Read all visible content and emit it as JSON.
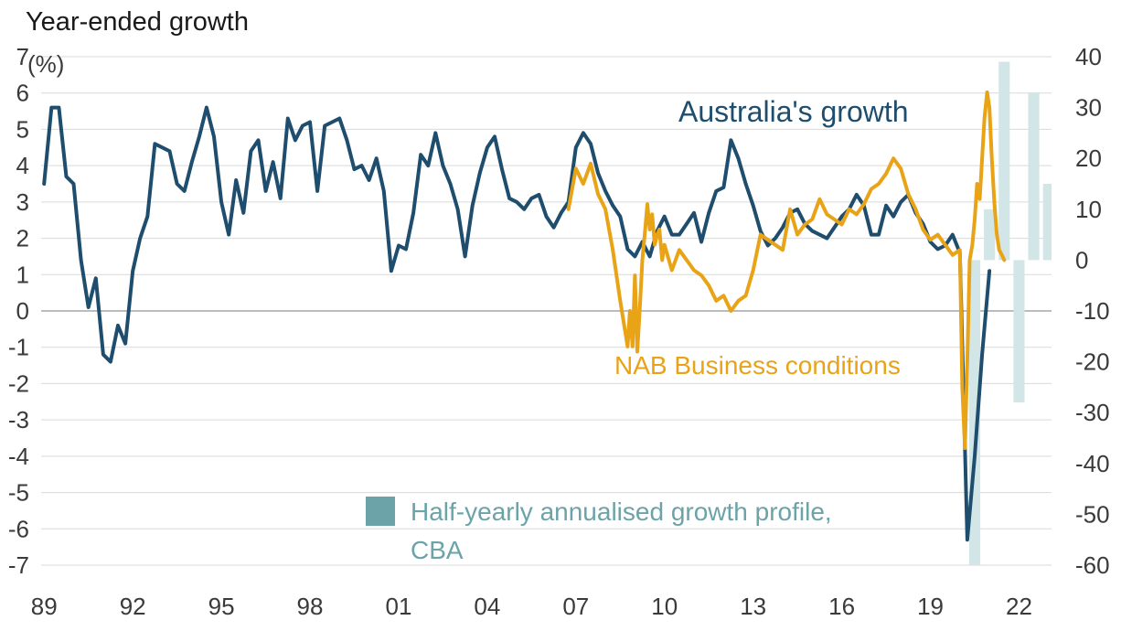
{
  "chart_data": {
    "type": "line",
    "title": "Year-ended growth",
    "left_unit": "(%)",
    "x_tick_labels": [
      "89",
      "92",
      "95",
      "98",
      "01",
      "04",
      "07",
      "10",
      "13",
      "16",
      "19",
      "22"
    ],
    "x_ticks": [
      1989,
      1992,
      1995,
      1998,
      2001,
      2004,
      2007,
      2010,
      2013,
      2016,
      2019,
      2022
    ],
    "xlim": [
      1988.9,
      2023.1
    ],
    "ylim_left": [
      -7,
      7
    ],
    "y_ticks_left": [
      7,
      6,
      5,
      4,
      3,
      2,
      1,
      0,
      -1,
      -2,
      -3,
      -4,
      -5,
      -6,
      -7
    ],
    "y_tick_labels_left": [
      "7",
      "6",
      "5",
      "4",
      "3",
      "2",
      "1",
      "0",
      "-1",
      "-2",
      "-3",
      "-4",
      "-5",
      "-6",
      "-7"
    ],
    "ylim_right": [
      -60,
      40
    ],
    "y_ticks_right": [
      40,
      30,
      20,
      10,
      0,
      -10,
      -20,
      -30,
      -40,
      -50,
      -60
    ],
    "y_tick_labels_right": [
      "40",
      "30",
      "20",
      "10",
      "0",
      "-10",
      "-20",
      "-30",
      "-40",
      "-50",
      "-60"
    ],
    "gridlines": true,
    "annotations": {
      "australia": "Australia's growth",
      "nab": "NAB Business conditions",
      "legend_line1": "Half-yearly annualised growth profile,",
      "legend_line2": "CBA"
    },
    "colors": {
      "australia": "#1e4d6e",
      "nab": "#e8a317",
      "bars": "#d2e6e7",
      "legend_swatch": "#6ba3a8",
      "grid": "#d9d9d9",
      "zero": "#a6a6a6"
    },
    "series": [
      {
        "name": "Australia's growth",
        "axis": "left",
        "x": [
          1989.0,
          1989.25,
          1989.5,
          1989.75,
          1990.0,
          1990.25,
          1990.5,
          1990.75,
          1991.0,
          1991.25,
          1991.5,
          1991.75,
          1992.0,
          1992.25,
          1992.5,
          1992.75,
          1993.0,
          1993.25,
          1993.5,
          1993.75,
          1994.0,
          1994.25,
          1994.5,
          1994.75,
          1995.0,
          1995.25,
          1995.5,
          1995.75,
          1996.0,
          1996.25,
          1996.5,
          1996.75,
          1997.0,
          1997.25,
          1997.5,
          1997.75,
          1998.0,
          1998.25,
          1998.5,
          1998.75,
          1999.0,
          1999.25,
          1999.5,
          1999.75,
          2000.0,
          2000.25,
          2000.5,
          2000.75,
          2001.0,
          2001.25,
          2001.5,
          2001.75,
          2002.0,
          2002.25,
          2002.5,
          2002.75,
          2003.0,
          2003.25,
          2003.5,
          2003.75,
          2004.0,
          2004.25,
          2004.5,
          2004.75,
          2005.0,
          2005.25,
          2005.5,
          2005.75,
          2006.0,
          2006.25,
          2006.5,
          2006.75,
          2007.0,
          2007.25,
          2007.5,
          2007.75,
          2008.0,
          2008.25,
          2008.5,
          2008.75,
          2009.0,
          2009.25,
          2009.5,
          2009.75,
          2010.0,
          2010.25,
          2010.5,
          2010.75,
          2011.0,
          2011.25,
          2011.5,
          2011.75,
          2012.0,
          2012.25,
          2012.5,
          2012.75,
          2013.0,
          2013.25,
          2013.5,
          2013.75,
          2014.0,
          2014.25,
          2014.5,
          2014.75,
          2015.0,
          2015.25,
          2015.5,
          2015.75,
          2016.0,
          2016.25,
          2016.5,
          2016.75,
          2017.0,
          2017.25,
          2017.5,
          2017.75,
          2018.0,
          2018.25,
          2018.5,
          2018.75,
          2019.0,
          2019.25,
          2019.5,
          2019.75,
          2020.0,
          2020.25,
          2020.5,
          2020.75,
          2021.0
        ],
        "values": [
          3.5,
          5.6,
          5.6,
          3.7,
          3.5,
          1.4,
          0.1,
          0.9,
          -1.2,
          -1.4,
          -0.4,
          -0.9,
          1.1,
          2.0,
          2.6,
          4.6,
          4.5,
          4.4,
          3.5,
          3.3,
          4.1,
          4.8,
          5.6,
          4.8,
          3.0,
          2.1,
          3.6,
          2.7,
          4.4,
          4.7,
          3.3,
          4.1,
          3.1,
          5.3,
          4.7,
          5.1,
          5.2,
          3.3,
          5.1,
          5.2,
          5.3,
          4.7,
          3.9,
          4.0,
          3.6,
          4.2,
          3.3,
          1.1,
          1.8,
          1.7,
          2.7,
          4.3,
          4.0,
          4.9,
          4.0,
          3.5,
          2.8,
          1.5,
          2.9,
          3.8,
          4.5,
          4.8,
          3.9,
          3.1,
          3.0,
          2.8,
          3.1,
          3.2,
          2.6,
          2.3,
          2.7,
          3.0,
          4.5,
          4.9,
          4.6,
          3.8,
          3.3,
          2.9,
          2.6,
          1.7,
          1.5,
          1.9,
          1.5,
          2.2,
          2.6,
          2.1,
          2.1,
          2.4,
          2.7,
          1.9,
          2.7,
          3.3,
          3.4,
          4.7,
          4.2,
          3.5,
          2.9,
          2.2,
          1.8,
          2.0,
          2.3,
          2.7,
          2.8,
          2.4,
          2.2,
          2.1,
          2.0,
          2.3,
          2.6,
          2.8,
          3.2,
          2.9,
          2.1,
          2.1,
          2.9,
          2.6,
          3.0,
          3.2,
          2.7,
          2.4,
          1.9,
          1.7,
          1.8,
          2.1,
          1.6,
          -6.3,
          -4.0,
          -1.2,
          1.1
        ]
      },
      {
        "name": "NAB Business conditions",
        "axis": "right",
        "x": [
          2006.75,
          2007.0,
          2007.25,
          2007.5,
          2007.75,
          2008.0,
          2008.25,
          2008.5,
          2008.75,
          2008.83,
          2008.92,
          2009.0,
          2009.08,
          2009.17,
          2009.25,
          2009.33,
          2009.42,
          2009.5,
          2009.58,
          2009.67,
          2009.75,
          2009.83,
          2009.92,
          2010.0,
          2010.25,
          2010.5,
          2010.75,
          2011.0,
          2011.25,
          2011.5,
          2011.75,
          2012.0,
          2012.25,
          2012.5,
          2012.75,
          2013.0,
          2013.25,
          2013.5,
          2013.75,
          2014.0,
          2014.25,
          2014.5,
          2014.75,
          2015.0,
          2015.25,
          2015.5,
          2015.75,
          2016.0,
          2016.25,
          2016.5,
          2016.75,
          2017.0,
          2017.25,
          2017.5,
          2017.75,
          2018.0,
          2018.25,
          2018.5,
          2018.75,
          2019.0,
          2019.25,
          2019.5,
          2019.75,
          2020.0,
          2020.08,
          2020.17,
          2020.25,
          2020.33,
          2020.42,
          2020.5,
          2020.58,
          2020.67,
          2020.75,
          2020.83,
          2020.92,
          2021.0,
          2021.08,
          2021.17,
          2021.25,
          2021.33,
          2021.42,
          2021.5
        ],
        "values": [
          10,
          18,
          15,
          19,
          13,
          10,
          2,
          -8,
          -17,
          -10,
          -17,
          -3,
          -18,
          -9,
          0,
          5,
          11,
          6,
          9,
          3,
          5,
          6,
          0,
          3,
          -2,
          2,
          0,
          -2,
          -3,
          -5,
          -8,
          -7,
          -10,
          -8,
          -7,
          -2,
          5,
          4,
          3,
          2,
          10,
          5,
          7,
          8,
          12,
          9,
          8,
          7,
          10,
          9,
          11,
          14,
          15,
          17,
          20,
          18,
          13,
          10,
          6,
          4,
          5,
          3,
          1,
          2,
          -25,
          -37,
          -20,
          0,
          3,
          8,
          15,
          12,
          20,
          28,
          33,
          30,
          20,
          11,
          5,
          2,
          1,
          0
        ],
        "visible_x_end": 2021.5
      }
    ],
    "bars": {
      "name": "Half-yearly annualised growth profile, CBA",
      "axis": "right",
      "x_start": [
        2020.25,
        2020.75,
        2021.25,
        2021.75,
        2022.25,
        2022.75
      ],
      "x_end": [
        2020.75,
        2021.25,
        2021.75,
        2022.25,
        2022.75,
        2023.25
      ],
      "values": [
        -60,
        10,
        39,
        -28,
        33,
        15
      ]
    }
  }
}
